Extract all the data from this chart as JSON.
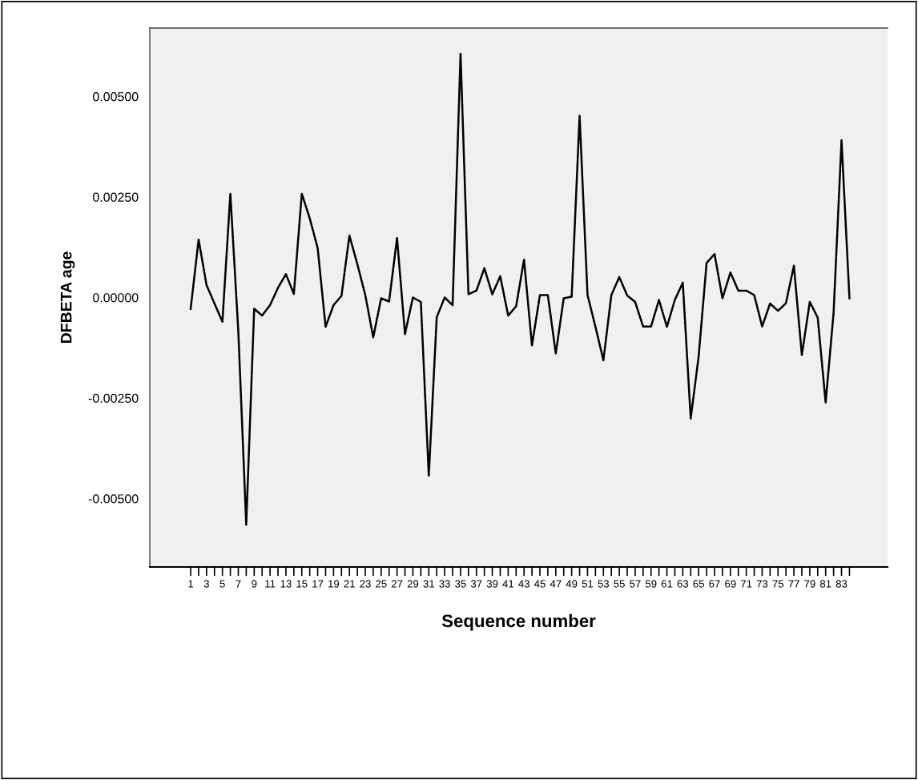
{
  "chart_data": {
    "type": "line",
    "xlabel": "Sequence number",
    "ylabel": "DFBETA age",
    "categories": [
      "1",
      null,
      "3",
      null,
      "5",
      null,
      "7",
      null,
      "9",
      null,
      "11",
      null,
      "13",
      null,
      "15",
      null,
      "17",
      null,
      "19",
      null,
      "21",
      null,
      "23",
      null,
      "25",
      null,
      "27",
      null,
      "29",
      null,
      "31",
      null,
      "33",
      null,
      "35",
      null,
      "37",
      null,
      "39",
      null,
      "41",
      null,
      "43",
      null,
      "45",
      null,
      "47",
      null,
      "49",
      null,
      "51",
      null,
      "53",
      null,
      "55",
      null,
      "57",
      null,
      "59",
      null,
      "61",
      null,
      "63",
      null,
      "65",
      null,
      "67",
      null,
      "69",
      null,
      "71",
      null,
      "73",
      null,
      "75",
      null,
      "77",
      null,
      "79",
      null,
      "81",
      null,
      "83",
      null
    ],
    "series": [
      {
        "color": "#000000",
        "values": [
          -0.00028,
          0.00144,
          0.00031,
          -0.00015,
          -0.0006,
          0.00258,
          -0.00083,
          -0.00565,
          -0.00028,
          -0.00045,
          -0.00019,
          0.00024,
          0.00058,
          9e-05,
          0.00258,
          0.00197,
          0.00123,
          -0.00073,
          -0.00019,
          4e-05,
          0.00154,
          0.00083,
          6e-05,
          -0.00099,
          -2e-05,
          -0.0001,
          0.00148,
          -0.00091,
          0.0,
          -0.00011,
          -0.00443,
          -0.00049,
          0.0,
          -0.00019,
          0.00606,
          8e-05,
          0.00017,
          0.00073,
          8e-05,
          0.00053,
          -0.00045,
          -0.00022,
          0.00094,
          -0.00119,
          6e-05,
          6e-05,
          -0.00139,
          -2e-05,
          2e-05,
          0.00452,
          6e-05,
          -0.00073,
          -0.00156,
          6e-05,
          0.00051,
          5e-05,
          -0.00011,
          -0.00072,
          -0.00072,
          -6e-05,
          -0.00073,
          -6e-05,
          0.00037,
          -0.00301,
          -0.00146,
          0.00086,
          0.00108,
          -2e-05,
          0.00062,
          0.00017,
          0.00017,
          6e-05,
          -0.00072,
          -0.00015,
          -0.00033,
          -0.00014,
          0.00079,
          -0.00143,
          -0.00011,
          -0.0005,
          -0.00261,
          -0.00038,
          0.00391,
          -2e-05
        ]
      }
    ],
    "ylim": [
      -0.0067,
      0.0067
    ],
    "yticks": [
      {
        "value": -0.005,
        "label": "-0.00500"
      },
      {
        "value": -0.0025,
        "label": "-0.00250"
      },
      {
        "value": 0.0,
        "label": "0.00000"
      },
      {
        "value": 0.0025,
        "label": "0.00250"
      },
      {
        "value": 0.005,
        "label": "0.00500"
      }
    ],
    "grid": false,
    "line_style": "solid"
  }
}
